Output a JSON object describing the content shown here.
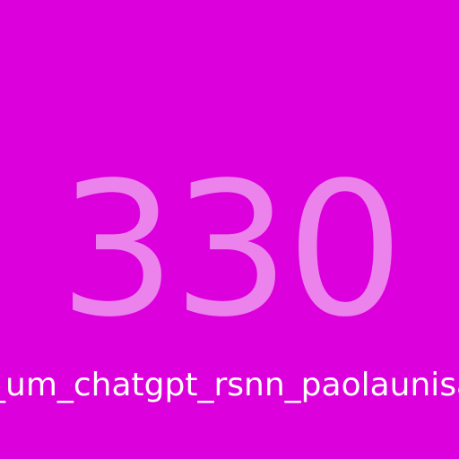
{
  "page": {
    "background_color": "#dc00dc"
  },
  "badge": {
    "number": "330",
    "number_color": "#ec82ec"
  },
  "caption": {
    "text": "_um_chatgpt_rsnn_paolaunisa",
    "color": "#ffffff"
  }
}
